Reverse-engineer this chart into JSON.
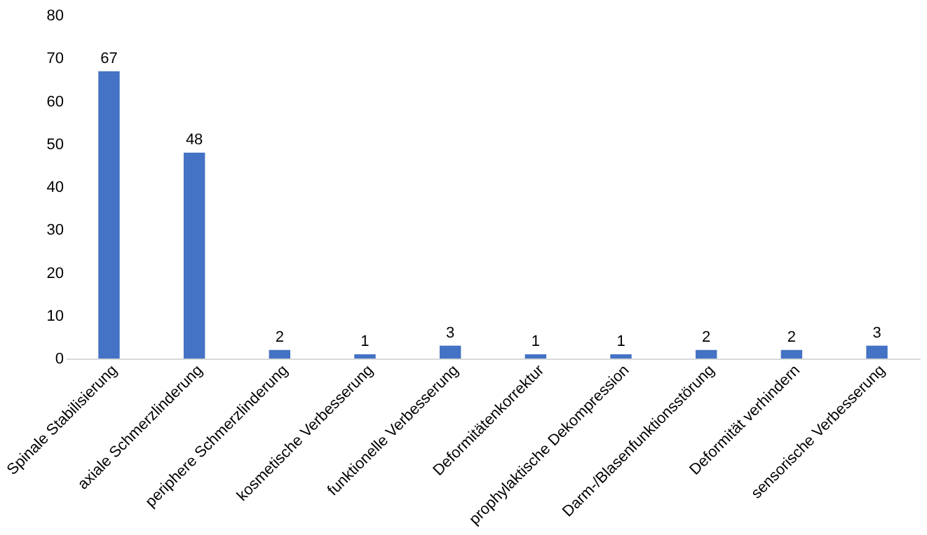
{
  "chart_data": {
    "type": "bar",
    "categories": [
      "Spinale Stabilisierung",
      "axiale Schmerzlinderung",
      "periphere Schmerzlinderung",
      "kosmetische Verbesserung",
      "funktionelle Verbesserung",
      "Deformitätenkorrektur",
      "prophylaktische Dekompression",
      "Darm-/Blasenfunktionsstörung",
      "Deformität verhindern",
      "sensorische Verbesserung"
    ],
    "values": [
      67,
      48,
      2,
      1,
      3,
      1,
      1,
      2,
      2,
      3
    ],
    "color": "#4472c4",
    "data_labels": true,
    "ylim": [
      0,
      80
    ],
    "yticks": [
      0,
      10,
      20,
      30,
      40,
      50,
      60,
      70,
      80
    ],
    "grid": false
  }
}
